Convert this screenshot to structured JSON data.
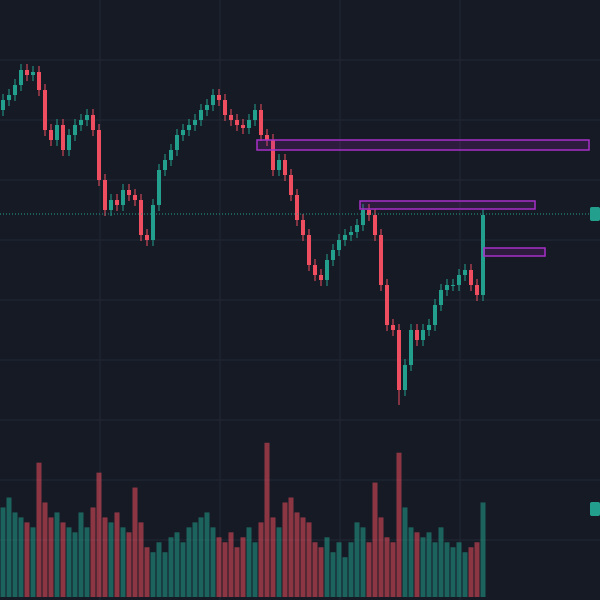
{
  "chart_data": {
    "type": "candlestick",
    "up_color": "#22a08d",
    "down_color": "#ee4e5f",
    "ylim": [
      0,
      600
    ],
    "y2lim": [
      0,
      600
    ],
    "open": [
      490,
      500,
      505,
      515,
      530,
      525,
      528,
      510,
      470,
      460,
      475,
      450,
      465,
      475,
      480,
      485,
      470,
      420,
      390,
      400,
      395,
      410,
      405,
      400,
      365,
      360,
      395,
      430,
      440,
      450,
      465,
      470,
      475,
      480,
      490,
      495,
      505,
      500,
      485,
      480,
      475,
      472,
      480,
      490,
      465,
      460,
      430,
      440,
      425,
      405,
      380,
      365,
      335,
      325,
      320,
      340,
      350,
      360,
      365,
      368,
      375,
      390,
      385,
      365,
      315,
      275,
      270,
      210,
      235,
      270,
      260,
      270,
      275,
      295,
      310,
      315,
      315,
      325,
      330,
      315,
      305
    ],
    "high": [
      506,
      511,
      521,
      536,
      536,
      534,
      534,
      516,
      476,
      481,
      481,
      471,
      481,
      486,
      491,
      491,
      476,
      426,
      406,
      406,
      416,
      416,
      411,
      406,
      371,
      401,
      436,
      446,
      456,
      471,
      476,
      481,
      486,
      496,
      501,
      511,
      511,
      506,
      491,
      486,
      481,
      486,
      496,
      496,
      471,
      466,
      446,
      446,
      431,
      411,
      386,
      371,
      341,
      331,
      346,
      356,
      366,
      371,
      374,
      381,
      396,
      396,
      391,
      371,
      321,
      281,
      276,
      241,
      276,
      276,
      276,
      281,
      301,
      316,
      321,
      321,
      331,
      336,
      336,
      321,
      391
    ],
    "low": [
      484,
      494,
      499,
      509,
      519,
      519,
      504,
      464,
      454,
      454,
      444,
      444,
      459,
      469,
      474,
      464,
      414,
      384,
      384,
      389,
      389,
      399,
      394,
      359,
      354,
      354,
      389,
      424,
      434,
      444,
      459,
      464,
      469,
      474,
      484,
      489,
      494,
      479,
      474,
      469,
      466,
      466,
      474,
      459,
      454,
      424,
      424,
      419,
      399,
      374,
      359,
      329,
      319,
      314,
      314,
      334,
      344,
      354,
      359,
      362,
      369,
      379,
      359,
      309,
      269,
      264,
      195,
      204,
      229,
      254,
      254,
      264,
      269,
      289,
      304,
      309,
      309,
      319,
      309,
      299,
      299
    ],
    "close": [
      500,
      505,
      515,
      530,
      525,
      528,
      510,
      470,
      460,
      475,
      450,
      465,
      475,
      480,
      485,
      470,
      420,
      390,
      400,
      395,
      410,
      405,
      400,
      365,
      360,
      395,
      430,
      440,
      450,
      465,
      470,
      475,
      480,
      490,
      495,
      505,
      500,
      485,
      480,
      475,
      472,
      480,
      490,
      465,
      460,
      430,
      440,
      425,
      405,
      380,
      365,
      335,
      325,
      320,
      340,
      350,
      360,
      365,
      368,
      375,
      390,
      385,
      365,
      315,
      275,
      270,
      210,
      235,
      270,
      260,
      270,
      275,
      295,
      310,
      315,
      315,
      325,
      330,
      315,
      305,
      385
    ],
    "series": [
      {
        "axis": "y2",
        "values": [
          90,
          100,
          85,
          80,
          75,
          70,
          135,
          95,
          80,
          85,
          75,
          70,
          65,
          85,
          70,
          90,
          125,
          80,
          75,
          85,
          70,
          65,
          110,
          75,
          50,
          45,
          55,
          45,
          60,
          65,
          55,
          70,
          75,
          80,
          85,
          70,
          60,
          55,
          65,
          50,
          60,
          70,
          55,
          75,
          155,
          80,
          70,
          95,
          100,
          85,
          80,
          75,
          55,
          50,
          60,
          45,
          55,
          40,
          55,
          75,
          70,
          55,
          115,
          80,
          60,
          55,
          145,
          90,
          70,
          65,
          60,
          65,
          55,
          70,
          55,
          50,
          55,
          45,
          50,
          55,
          95
        ]
      }
    ]
  }
}
